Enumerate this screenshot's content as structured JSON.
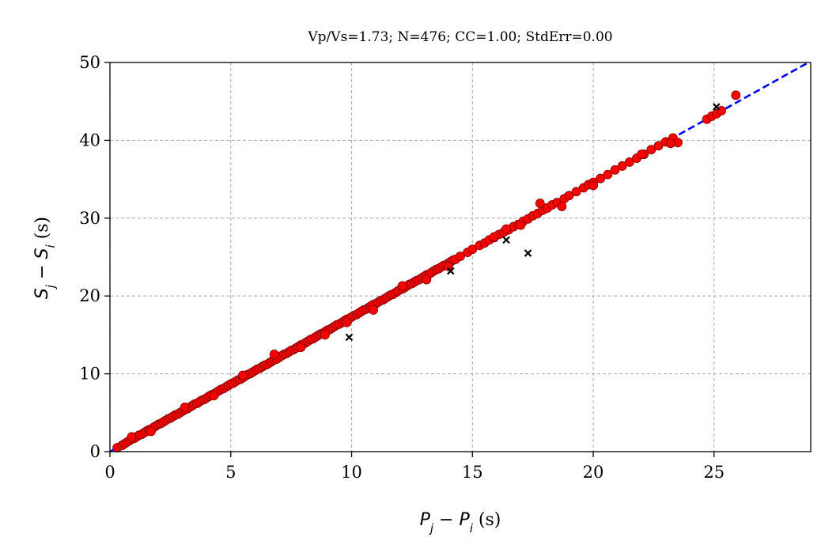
{
  "chart_data": {
    "type": "scatter",
    "title": "Vp/Vs=1.73; N=476; CC=1.00; StdErr=0.00",
    "xlabel": {
      "math": "P_j − P_i",
      "base1": "P",
      "sub1": "j",
      "op": " − ",
      "base2": "P",
      "sub2": "i",
      "unit": " (s)"
    },
    "ylabel": {
      "math": "S_j − S_i",
      "base1": "S",
      "sub1": "j",
      "op": " − ",
      "base2": "S",
      "sub2": "i",
      "unit": " (s)"
    },
    "xlim": [
      0,
      29
    ],
    "ylim": [
      0,
      50
    ],
    "xticks": [
      0,
      5,
      10,
      15,
      20,
      25
    ],
    "yticks": [
      0,
      10,
      20,
      30,
      40,
      50
    ],
    "grid": true,
    "fit_line": {
      "slope": 1.73,
      "intercept": 0,
      "color": "#0000ff",
      "style": "dashed"
    },
    "series": [
      {
        "marker": "circle",
        "color": "#ff0000",
        "edge_color": "#8b0000",
        "x": [
          0.3,
          0.5,
          0.6,
          0.7,
          0.8,
          0.9,
          1.0,
          1.1,
          1.2,
          1.3,
          1.4,
          1.5,
          1.6,
          1.7,
          1.8,
          1.9,
          2.0,
          2.1,
          2.2,
          2.3,
          2.4,
          2.5,
          2.6,
          2.7,
          2.8,
          2.9,
          3.0,
          3.1,
          3.2,
          3.3,
          3.4,
          3.5,
          3.6,
          3.7,
          3.8,
          3.9,
          4.0,
          4.1,
          4.2,
          4.3,
          4.4,
          4.5,
          4.6,
          4.7,
          4.8,
          4.9,
          5.0,
          5.1,
          5.2,
          5.3,
          5.4,
          5.5,
          5.6,
          5.7,
          5.8,
          5.9,
          6.0,
          6.1,
          6.2,
          6.3,
          6.4,
          6.5,
          6.6,
          6.7,
          6.8,
          6.9,
          7.0,
          7.1,
          7.2,
          7.3,
          7.4,
          7.5,
          7.6,
          7.7,
          7.8,
          7.9,
          8.0,
          8.1,
          8.2,
          8.3,
          8.4,
          8.5,
          8.6,
          8.7,
          8.8,
          8.9,
          9.0,
          9.1,
          9.2,
          9.3,
          9.4,
          9.5,
          9.6,
          9.7,
          9.8,
          9.9,
          10.0,
          10.1,
          10.2,
          10.3,
          10.4,
          10.5,
          10.6,
          10.7,
          10.8,
          10.9,
          11.0,
          11.1,
          11.2,
          11.3,
          11.4,
          11.5,
          11.6,
          11.7,
          11.8,
          11.9,
          12.0,
          12.1,
          12.2,
          12.3,
          12.4,
          12.5,
          12.6,
          12.7,
          12.8,
          12.9,
          13.0,
          13.1,
          13.2,
          13.3,
          13.4,
          13.5,
          13.6,
          13.7,
          13.8,
          13.9,
          14.0,
          14.1,
          14.2,
          14.3,
          14.5,
          14.8,
          15.0,
          15.3,
          15.5,
          15.7,
          15.9,
          16.1,
          16.3,
          16.5,
          16.7,
          16.9,
          17.1,
          17.3,
          17.5,
          17.7,
          17.9,
          18.1,
          18.3,
          18.5,
          18.8,
          19.0,
          19.3,
          19.6,
          19.8,
          20.0,
          20.3,
          20.6,
          20.9,
          21.2,
          21.5,
          21.8,
          22.1,
          22.4,
          22.7,
          23.0,
          23.3,
          23.5,
          24.7,
          24.9,
          25.1,
          25.3,
          25.9,
          0.9,
          1.7,
          3.1,
          4.3,
          5.5,
          6.8,
          7.9,
          8.9,
          9.8,
          10.9,
          12.1,
          13.1,
          14.0,
          15.9,
          16.4,
          17.0,
          17.8,
          18.7,
          20.0,
          22.0,
          23.2
        ],
        "y": [
          0.5,
          0.8,
          1.0,
          1.2,
          1.4,
          1.6,
          1.7,
          1.9,
          2.1,
          2.2,
          2.4,
          2.6,
          2.8,
          2.9,
          3.1,
          3.3,
          3.5,
          3.6,
          3.8,
          4.0,
          4.2,
          4.3,
          4.5,
          4.7,
          4.8,
          5.0,
          5.2,
          5.4,
          5.5,
          5.7,
          5.9,
          6.1,
          6.2,
          6.4,
          6.6,
          6.7,
          6.9,
          7.1,
          7.3,
          7.4,
          7.6,
          7.8,
          8.0,
          8.1,
          8.3,
          8.5,
          8.7,
          8.8,
          9.0,
          9.2,
          9.3,
          9.5,
          9.7,
          9.9,
          10.0,
          10.2,
          10.4,
          10.6,
          10.7,
          10.9,
          11.1,
          11.2,
          11.4,
          11.6,
          11.8,
          11.9,
          12.1,
          12.3,
          12.5,
          12.6,
          12.8,
          13.0,
          13.1,
          13.3,
          13.5,
          13.7,
          13.8,
          14.0,
          14.2,
          14.4,
          14.5,
          14.7,
          14.9,
          15.1,
          15.2,
          15.4,
          15.6,
          15.7,
          15.9,
          16.1,
          16.3,
          16.4,
          16.6,
          16.8,
          17.0,
          17.1,
          17.3,
          17.5,
          17.6,
          17.8,
          18.0,
          18.2,
          18.3,
          18.5,
          18.7,
          18.9,
          19.0,
          19.2,
          19.4,
          19.5,
          19.7,
          19.9,
          20.1,
          20.2,
          20.4,
          20.6,
          20.8,
          20.9,
          21.1,
          21.3,
          21.5,
          21.6,
          21.8,
          22.0,
          22.1,
          22.3,
          22.5,
          22.7,
          22.8,
          23.0,
          23.2,
          23.4,
          23.5,
          23.7,
          23.9,
          24.0,
          24.2,
          24.4,
          24.6,
          24.7,
          25.1,
          25.6,
          26.0,
          26.5,
          26.8,
          27.2,
          27.5,
          27.9,
          28.2,
          28.5,
          28.9,
          29.2,
          29.6,
          29.9,
          30.3,
          30.6,
          31.0,
          31.3,
          31.7,
          32.0,
          32.5,
          32.9,
          33.4,
          33.9,
          34.3,
          34.6,
          35.1,
          35.6,
          36.2,
          36.7,
          37.2,
          37.7,
          38.2,
          38.8,
          39.3,
          39.8,
          40.3,
          39.7,
          42.7,
          43.1,
          43.4,
          43.8,
          45.8,
          1.9,
          2.6,
          5.7,
          7.2,
          9.8,
          12.5,
          13.4,
          15.0,
          16.6,
          18.2,
          21.3,
          22.1,
          23.8,
          27.6,
          28.6,
          29.1,
          31.9,
          31.5,
          34.2,
          38.2,
          39.6
        ]
      },
      {
        "marker": "x",
        "color": "#000000",
        "x": [
          9.9,
          14.1,
          16.4,
          17.3,
          25.1
        ],
        "y": [
          14.7,
          23.2,
          27.2,
          25.5,
          44.3
        ]
      }
    ]
  }
}
